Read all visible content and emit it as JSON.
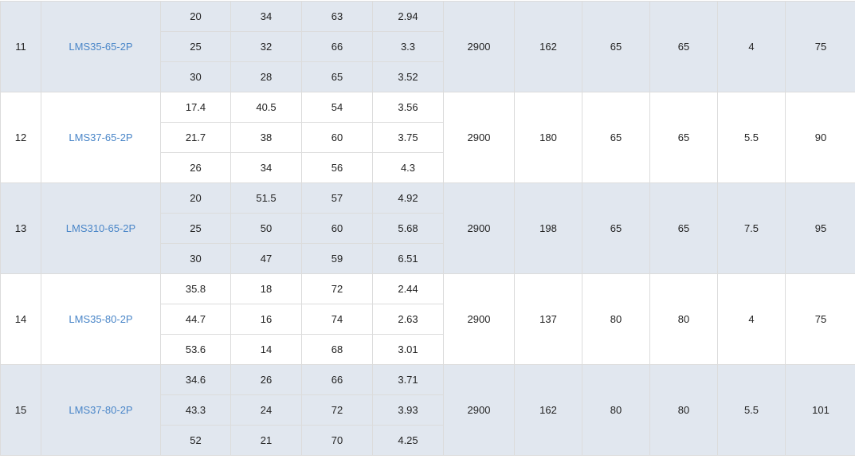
{
  "colors": {
    "shade": "#e1e7ef",
    "link": "#4a86c8",
    "border": "#dcdcdc"
  },
  "rows": [
    {
      "no": "11",
      "model": "LMS35-65-2P",
      "points": [
        [
          "20",
          "34",
          "63",
          "2.94"
        ],
        [
          "25",
          "32",
          "66",
          "3.3"
        ],
        [
          "30",
          "28",
          "65",
          "3.52"
        ]
      ],
      "speed": "2900",
      "c1": "162",
      "c2": "65",
      "c3": "65",
      "power": "4",
      "c5": "75",
      "shaded": true
    },
    {
      "no": "12",
      "model": "LMS37-65-2P",
      "points": [
        [
          "17.4",
          "40.5",
          "54",
          "3.56"
        ],
        [
          "21.7",
          "38",
          "60",
          "3.75"
        ],
        [
          "26",
          "34",
          "56",
          "4.3"
        ]
      ],
      "speed": "2900",
      "c1": "180",
      "c2": "65",
      "c3": "65",
      "power": "5.5",
      "c5": "90",
      "shaded": false
    },
    {
      "no": "13",
      "model": "LMS310-65-2P",
      "points": [
        [
          "20",
          "51.5",
          "57",
          "4.92"
        ],
        [
          "25",
          "50",
          "60",
          "5.68"
        ],
        [
          "30",
          "47",
          "59",
          "6.51"
        ]
      ],
      "speed": "2900",
      "c1": "198",
      "c2": "65",
      "c3": "65",
      "power": "7.5",
      "c5": "95",
      "shaded": true
    },
    {
      "no": "14",
      "model": "LMS35-80-2P",
      "points": [
        [
          "35.8",
          "18",
          "72",
          "2.44"
        ],
        [
          "44.7",
          "16",
          "74",
          "2.63"
        ],
        [
          "53.6",
          "14",
          "68",
          "3.01"
        ]
      ],
      "speed": "2900",
      "c1": "137",
      "c2": "80",
      "c3": "80",
      "power": "4",
      "c5": "75",
      "shaded": false
    },
    {
      "no": "15",
      "model": "LMS37-80-2P",
      "points": [
        [
          "34.6",
          "26",
          "66",
          "3.71"
        ],
        [
          "43.3",
          "24",
          "72",
          "3.93"
        ],
        [
          "52",
          "21",
          "70",
          "4.25"
        ]
      ],
      "speed": "2900",
      "c1": "162",
      "c2": "80",
      "c3": "80",
      "power": "5.5",
      "c5": "101",
      "shaded": true
    }
  ]
}
